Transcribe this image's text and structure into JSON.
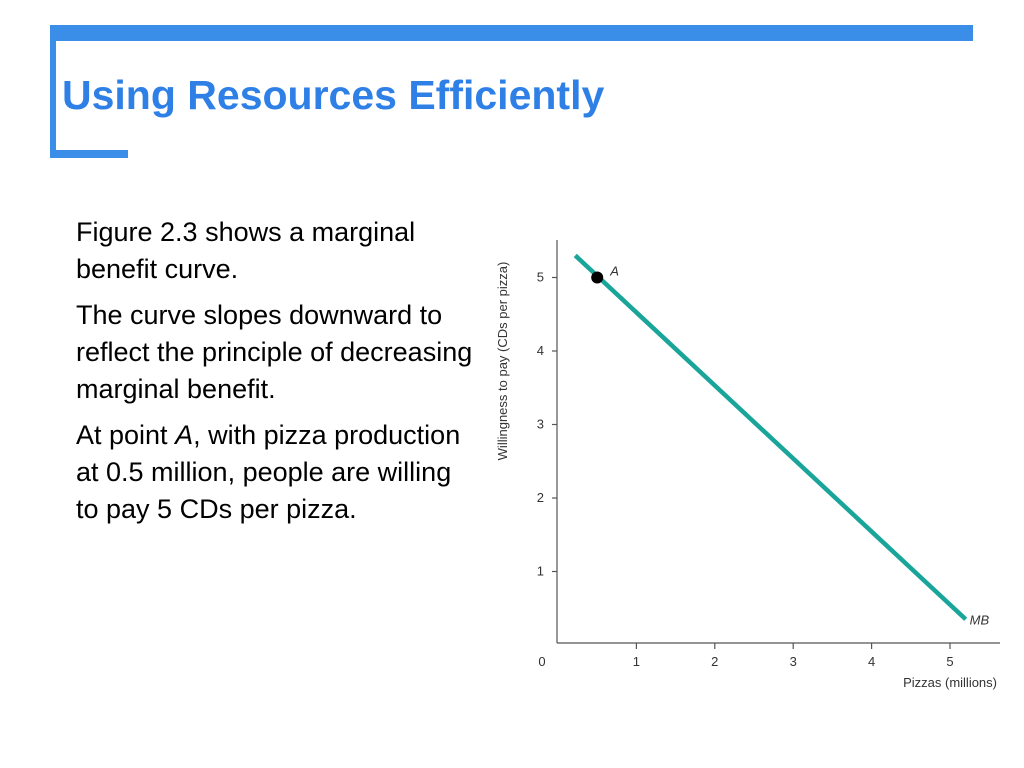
{
  "slide": {
    "title": "Using Resources Efficiently",
    "accent_color": "#3b8ee8",
    "title_color": "#2f80e6"
  },
  "body": {
    "paragraph_1": "Figure 2.3 shows a marginal benefit curve.",
    "paragraph_2": "The curve slopes downward to reflect the principle of decreasing marginal benefit.",
    "paragraph_3_before": "At point ",
    "paragraph_3_italic": "A",
    "paragraph_3_after": ", with pizza production at 0.5 million, people are willing to pay 5 CDs per pizza."
  },
  "chart_data": {
    "type": "line",
    "title": "",
    "xlabel": "Pizzas (millions)",
    "ylabel": "Willingness to pay (CDs per pizza)",
    "xlim": [
      0,
      5.6
    ],
    "ylim": [
      0,
      5.5
    ],
    "x_ticks": [
      0,
      1,
      2,
      3,
      4,
      5
    ],
    "y_ticks": [
      1,
      2,
      3,
      4,
      5
    ],
    "grid": false,
    "series": [
      {
        "name": "MB",
        "color": "#1aa59a",
        "x": [
          0.22,
          5.2
        ],
        "y": [
          5.3,
          0.35
        ]
      }
    ],
    "points": [
      {
        "label": "A",
        "x": 0.5,
        "y": 5.0,
        "color": "#000000"
      }
    ]
  }
}
